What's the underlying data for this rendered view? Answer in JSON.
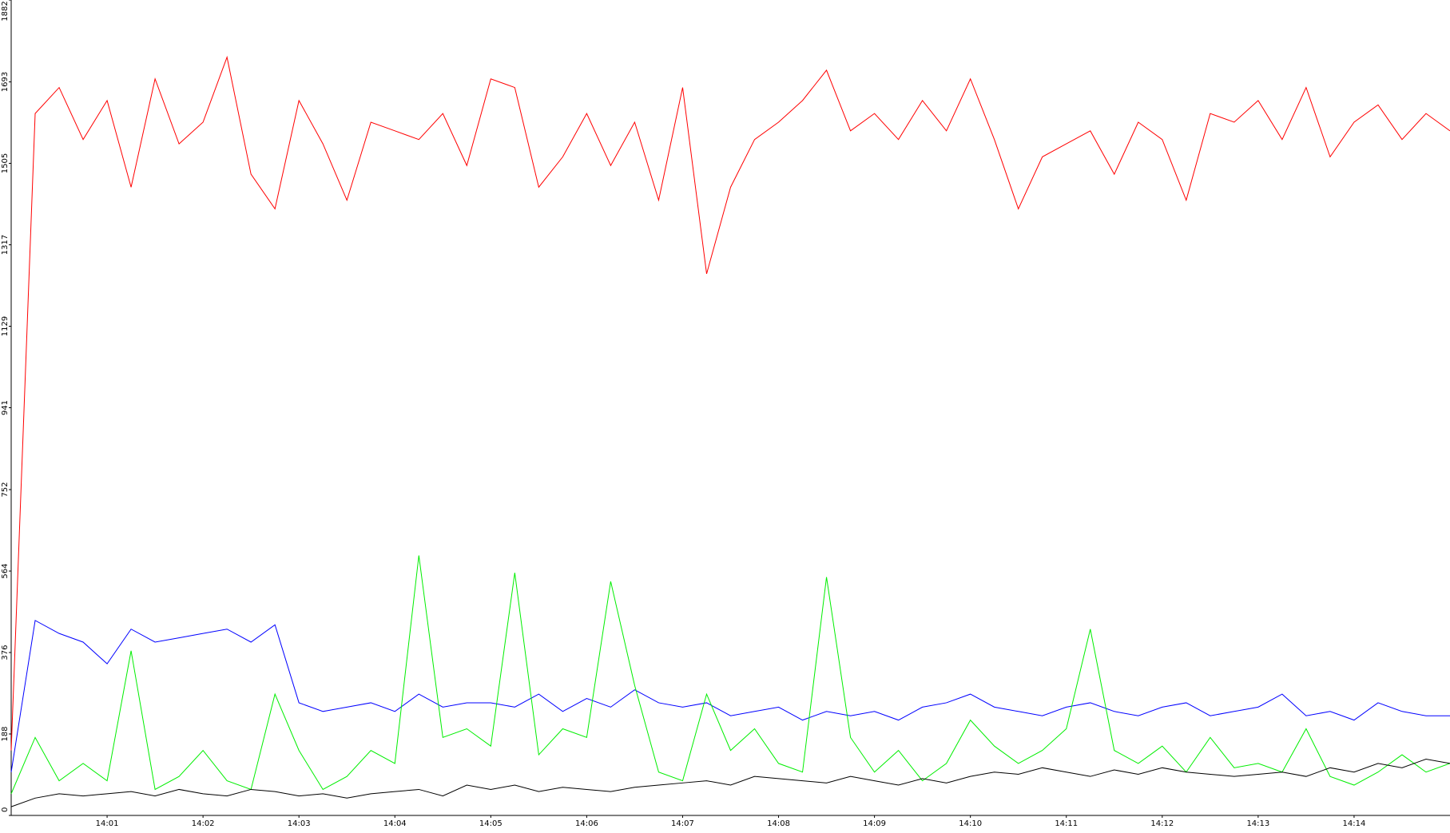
{
  "chart_data": {
    "type": "line",
    "x": [
      0,
      0.25,
      0.5,
      0.75,
      1,
      1.25,
      1.5,
      1.75,
      2,
      2.25,
      2.5,
      2.75,
      3,
      3.25,
      3.5,
      3.75,
      4,
      4.25,
      4.5,
      4.75,
      5,
      5.25,
      5.5,
      5.75,
      6,
      6.25,
      6.5,
      6.75,
      7,
      7.25,
      7.5,
      7.75,
      8,
      8.25,
      8.5,
      8.75,
      9,
      9.25,
      9.5,
      9.75,
      10,
      10.25,
      10.5,
      10.75,
      11,
      11.25,
      11.5,
      11.75,
      12,
      12.25,
      12.5,
      12.75,
      13,
      13.25,
      13.5,
      13.75,
      14,
      14.25,
      14.5,
      14.75,
      15
    ],
    "series": [
      {
        "color": "#ff0000",
        "values": [
          150,
          1620,
          1680,
          1560,
          1650,
          1450,
          1700,
          1550,
          1600,
          1750,
          1480,
          1400,
          1650,
          1550,
          1420,
          1600,
          1580,
          1560,
          1620,
          1500,
          1700,
          1680,
          1450,
          1520,
          1620,
          1500,
          1600,
          1420,
          1680,
          1250,
          1450,
          1560,
          1600,
          1650,
          1720,
          1580,
          1620,
          1560,
          1650,
          1580,
          1700,
          1560,
          1400,
          1520,
          1550,
          1580,
          1480,
          1600,
          1560,
          1420,
          1620,
          1600,
          1650,
          1560,
          1680,
          1520,
          1600,
          1640,
          1560,
          1620,
          1580
        ]
      },
      {
        "color": "#0000ff",
        "values": [
          100,
          450,
          420,
          400,
          350,
          430,
          400,
          410,
          420,
          430,
          400,
          440,
          260,
          240,
          250,
          260,
          240,
          280,
          250,
          260,
          260,
          250,
          280,
          240,
          270,
          250,
          290,
          260,
          250,
          260,
          230,
          240,
          250,
          220,
          240,
          230,
          240,
          220,
          250,
          260,
          280,
          250,
          240,
          230,
          250,
          260,
          240,
          230,
          250,
          260,
          230,
          240,
          250,
          280,
          230,
          240,
          220,
          260,
          240,
          230,
          230
        ]
      },
      {
        "color": "#00ee00",
        "values": [
          50,
          180,
          80,
          120,
          80,
          380,
          60,
          90,
          150,
          80,
          60,
          280,
          150,
          60,
          90,
          150,
          120,
          600,
          180,
          200,
          160,
          560,
          140,
          200,
          180,
          540,
          300,
          100,
          80,
          280,
          150,
          200,
          120,
          100,
          550,
          180,
          100,
          150,
          80,
          120,
          220,
          160,
          120,
          150,
          200,
          430,
          150,
          120,
          160,
          100,
          180,
          110,
          120,
          100,
          200,
          90,
          70,
          100,
          140,
          100,
          120
        ]
      },
      {
        "color": "#000000",
        "values": [
          20,
          40,
          50,
          45,
          50,
          55,
          45,
          60,
          50,
          45,
          60,
          55,
          45,
          50,
          40,
          50,
          55,
          60,
          45,
          70,
          60,
          70,
          55,
          65,
          60,
          55,
          65,
          70,
          75,
          80,
          70,
          90,
          85,
          80,
          75,
          90,
          80,
          70,
          85,
          75,
          90,
          100,
          95,
          110,
          100,
          90,
          105,
          95,
          110,
          100,
          95,
          90,
          95,
          100,
          90,
          110,
          100,
          120,
          110,
          130,
          120
        ]
      }
    ],
    "xlim": [
      0,
      15
    ],
    "xticks": [
      {
        "value": 1,
        "label": "14:01"
      },
      {
        "value": 2,
        "label": "14:02"
      },
      {
        "value": 3,
        "label": "14:03"
      },
      {
        "value": 4,
        "label": "14:04"
      },
      {
        "value": 5,
        "label": "14:05"
      },
      {
        "value": 6,
        "label": "14:06"
      },
      {
        "value": 7,
        "label": "14:07"
      },
      {
        "value": 8,
        "label": "14:08"
      },
      {
        "value": 9,
        "label": "14:09"
      },
      {
        "value": 10,
        "label": "14:10"
      },
      {
        "value": 11,
        "label": "14:11"
      },
      {
        "value": 12,
        "label": "14:12"
      },
      {
        "value": 13,
        "label": "14:13"
      },
      {
        "value": 14,
        "label": "14:14"
      }
    ],
    "ylim": [
      0,
      1882
    ],
    "yticks": [
      0,
      188,
      376,
      564,
      752,
      941,
      1129,
      1317,
      1505,
      1693,
      1882
    ]
  }
}
